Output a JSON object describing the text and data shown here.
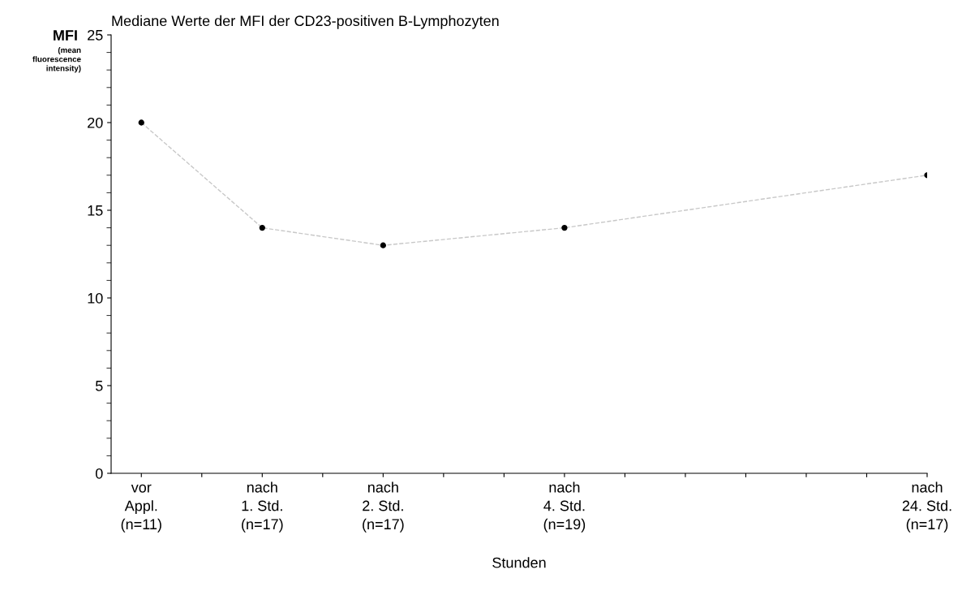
{
  "chart_data": {
    "type": "line",
    "title": "Mediane Werte der MFI der CD23-positiven B-Lymphozyten",
    "ylabel": "MFI",
    "annotations": [
      "(mean fluorescence intensity)"
    ],
    "xlabel": "Stunden",
    "categories": [
      "vor\nAppl.\n(n=11)",
      null,
      "nach\n1. Std.\n(n=17)",
      null,
      "nach\n2. Std.\n(n=17)",
      null,
      null,
      "nach\n4. Std.\n(n=19)",
      null,
      null,
      null,
      null,
      null,
      "nach\n24. Std.\n(n=17)"
    ],
    "series": [
      {
        "color": "#c8c8c8",
        "values": [
          20,
          null,
          14,
          null,
          13,
          null,
          null,
          14,
          null,
          null,
          null,
          null,
          null,
          17
        ]
      }
    ],
    "ylim": [
      0,
      25
    ],
    "yticks": [
      0,
      5,
      10,
      15,
      20,
      25
    ],
    "grid": false,
    "legend": false,
    "marker": "circle",
    "line_style": "dashed"
  }
}
